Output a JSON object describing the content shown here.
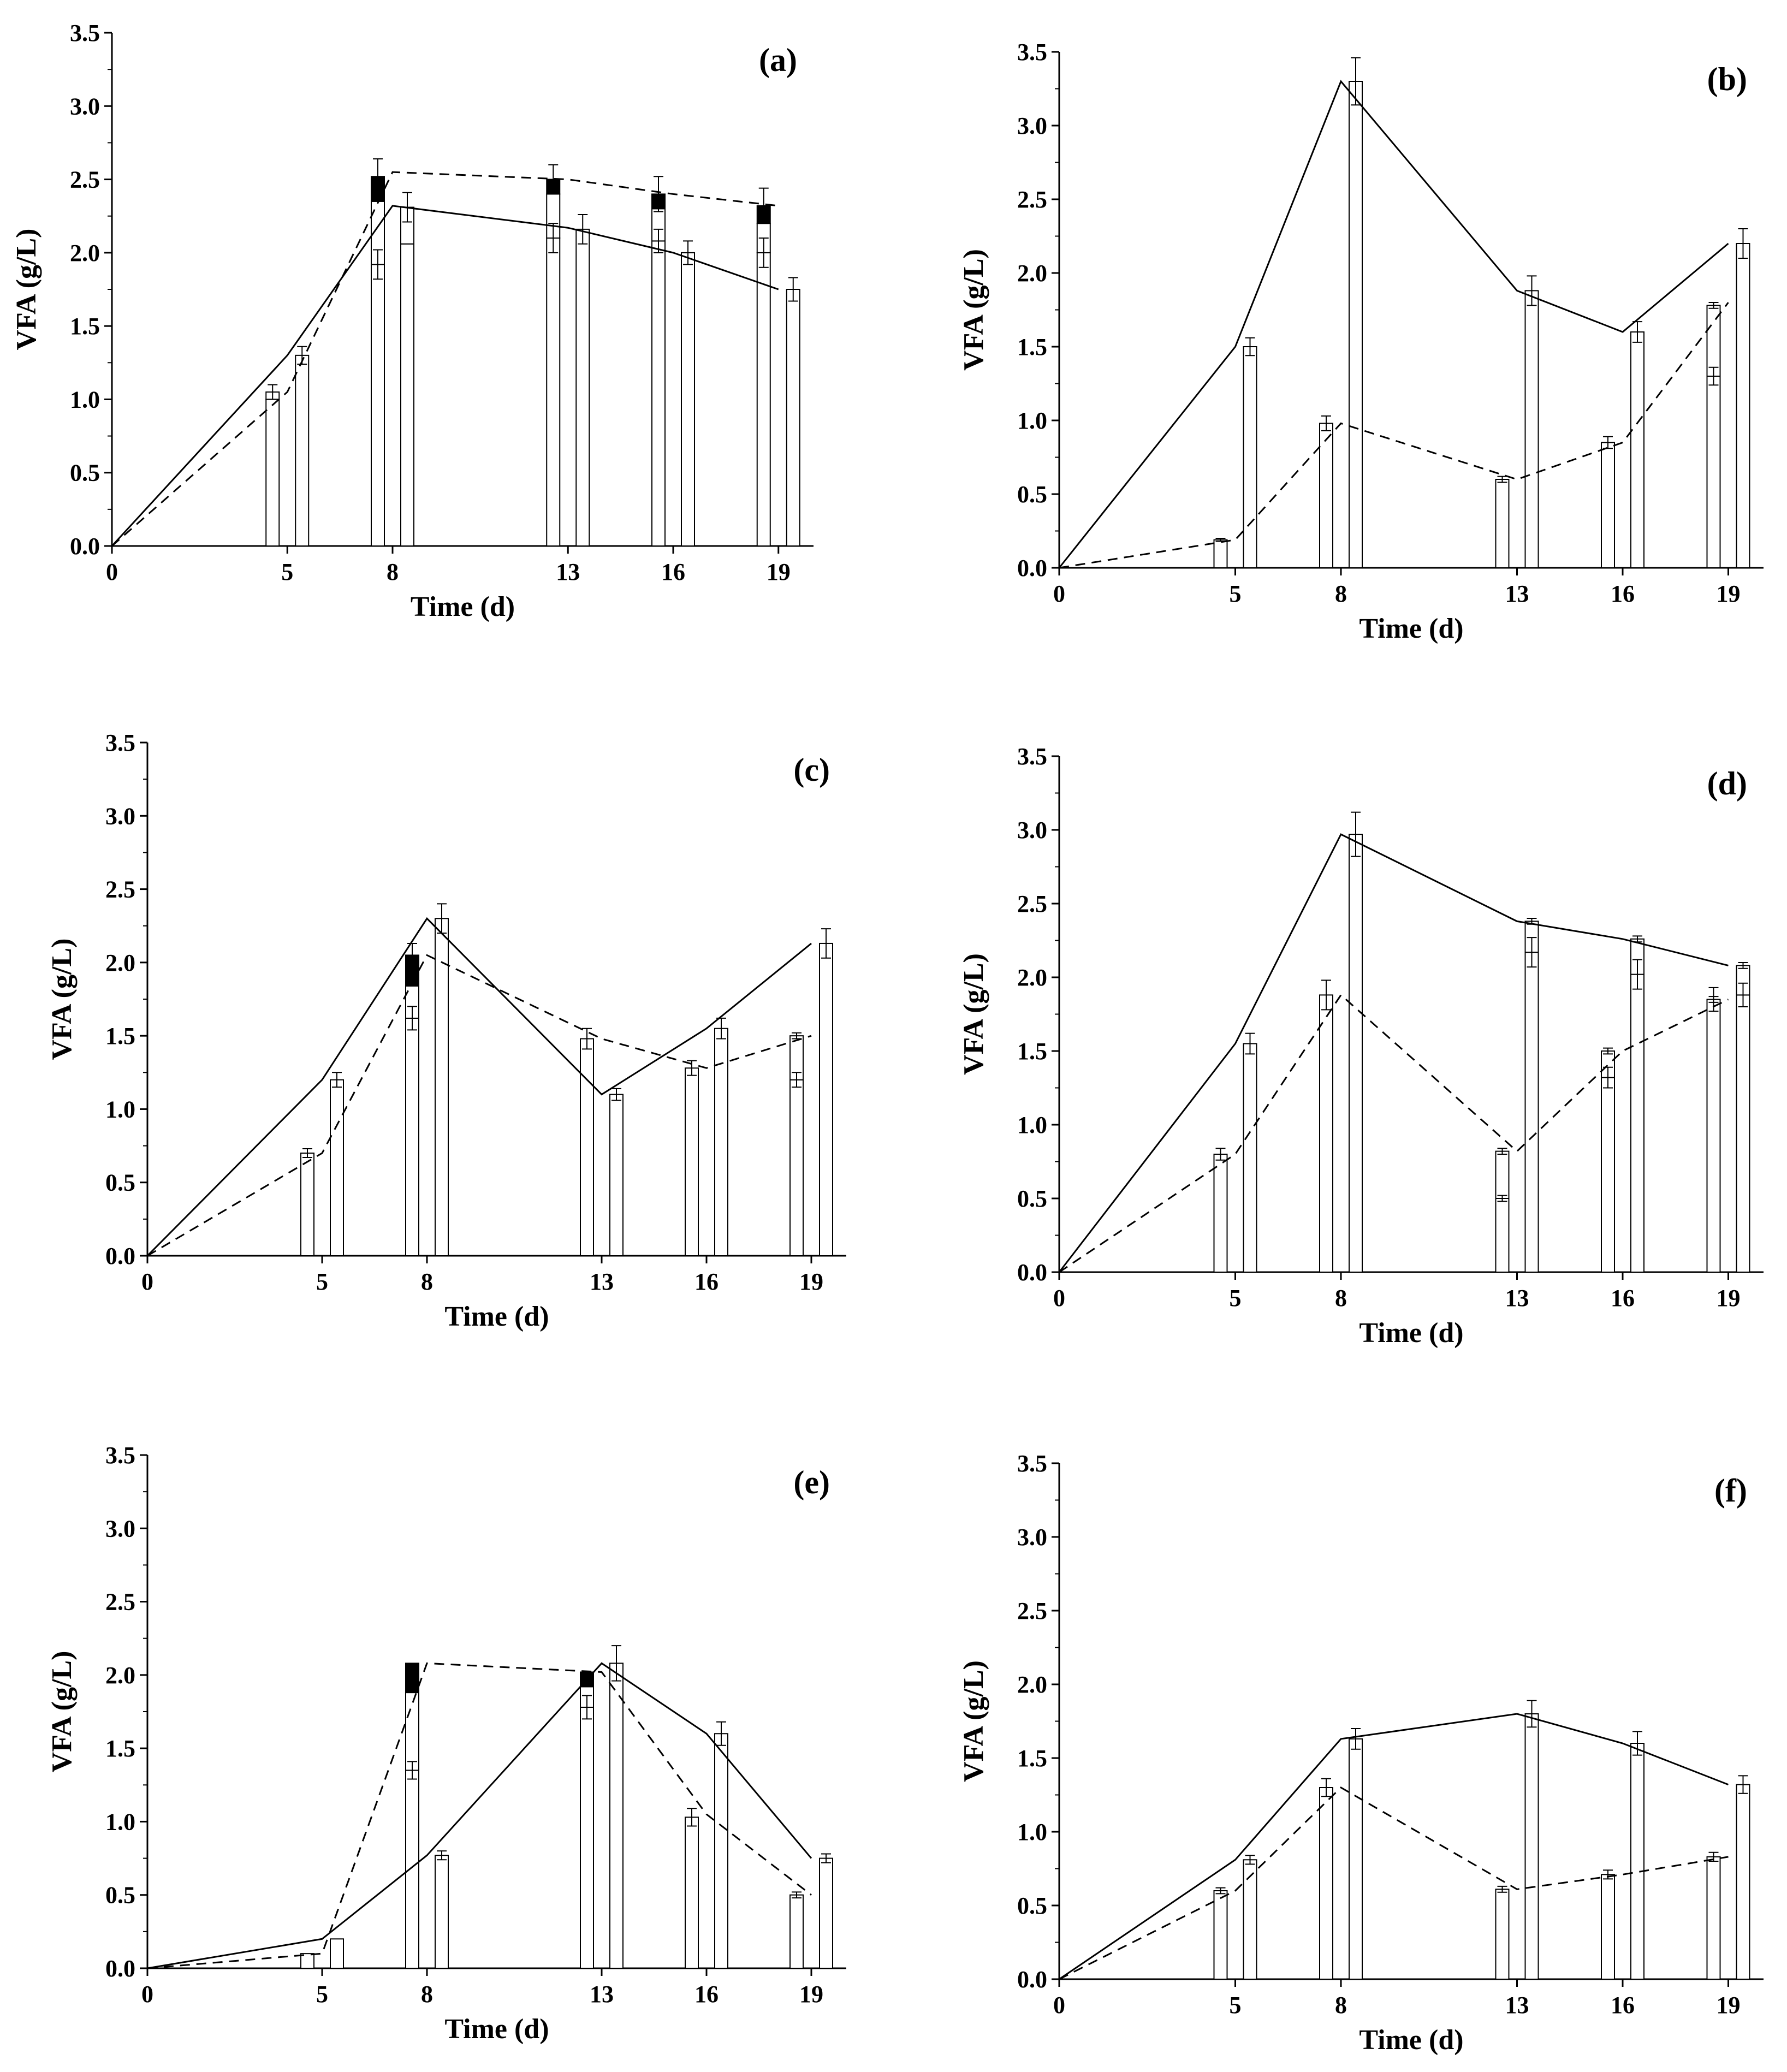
{
  "figure": {
    "panels": [
      {
        "label": "(a)",
        "ylabel": "VFA (g/L)",
        "xlabel": "Time (d)"
      },
      {
        "label": "(b)",
        "ylabel": "VFA (g/L)",
        "xlabel": "Time (d)"
      },
      {
        "label": "(c)",
        "ylabel": "VFA (g/L)",
        "xlabel": "Time (d)"
      },
      {
        "label": "(d)",
        "ylabel": "VFA (g/L)",
        "xlabel": "Time (d)"
      },
      {
        "label": "(e)",
        "ylabel": "VFA (g/L)",
        "xlabel": "Time (d)"
      },
      {
        "label": "(f)",
        "ylabel": "VFA (g/L)",
        "xlabel": "Time (d)"
      }
    ]
  },
  "chart_data": [
    {
      "type": "bar",
      "title": "(a)",
      "xlabel": "Time (d)",
      "ylabel": "VFA (g/L)",
      "x_ticks": [
        0,
        5,
        8,
        13,
        16,
        19
      ],
      "xlim": [
        0,
        20
      ],
      "ylim": [
        0,
        3.5
      ],
      "y_ticks": [
        "0.0",
        "0.5",
        "1.0",
        "1.5",
        "2.0",
        "2.5",
        "3.0",
        "3.5"
      ],
      "lines": {
        "dashed": [
          [
            0,
            0
          ],
          [
            5,
            1.05
          ],
          [
            8,
            2.55
          ],
          [
            13,
            2.5
          ],
          [
            16,
            2.4
          ],
          [
            19,
            2.32
          ]
        ],
        "solid": [
          [
            0,
            0
          ],
          [
            5,
            1.3
          ],
          [
            8,
            2.32
          ],
          [
            13,
            2.17
          ],
          [
            16,
            2.0
          ],
          [
            19,
            1.75
          ]
        ]
      },
      "bars": [
        {
          "day": 5,
          "left": {
            "stack": [
              1.0,
              0.05,
              0
            ],
            "err": 0.05,
            "inner_err": 0.0
          },
          "right": {
            "stack": [
              1.3
            ],
            "err": 0.06
          }
        },
        {
          "day": 8,
          "left": {
            "stack": [
              1.92,
              0.43,
              0.17
            ],
            "err": 0.12,
            "inner_err": 0.1
          },
          "right": {
            "stack": [
              2.06,
              0.25
            ],
            "err": 0.1
          }
        },
        {
          "day": 13,
          "left": {
            "stack": [
              2.1,
              0.3,
              0.1
            ],
            "err": 0.1,
            "inner_err": 0.1
          },
          "right": {
            "stack": [
              2.16
            ],
            "err": 0.1
          }
        },
        {
          "day": 16,
          "left": {
            "stack": [
              2.08,
              0.22,
              0.1
            ],
            "err": 0.12,
            "inner_err": 0.08
          },
          "right": {
            "stack": [
              2.0
            ],
            "err": 0.08
          }
        },
        {
          "day": 19,
          "left": {
            "stack": [
              2.0,
              0.2,
              0.12
            ],
            "err": 0.12,
            "inner_err": 0.1
          },
          "right": {
            "stack": [
              1.75
            ],
            "err": 0.08
          }
        }
      ]
    },
    {
      "type": "bar",
      "title": "(b)",
      "xlabel": "Time (d)",
      "ylabel": "VFA (g/L)",
      "x_ticks": [
        0,
        5,
        8,
        13,
        16,
        19
      ],
      "xlim": [
        0,
        20
      ],
      "ylim": [
        0,
        3.5
      ],
      "y_ticks": [
        "0.0",
        "0.5",
        "1.0",
        "1.5",
        "2.0",
        "2.5",
        "3.0",
        "3.5"
      ],
      "lines": {
        "dashed": [
          [
            0,
            0
          ],
          [
            5,
            0.19
          ],
          [
            8,
            0.98
          ],
          [
            13,
            0.6
          ],
          [
            16,
            0.85
          ],
          [
            19,
            1.8
          ]
        ],
        "solid": [
          [
            0,
            0
          ],
          [
            5,
            1.5
          ],
          [
            8,
            3.3
          ],
          [
            13,
            1.88
          ],
          [
            16,
            1.6
          ],
          [
            19,
            2.2
          ]
        ]
      },
      "bars": [
        {
          "day": 5,
          "left": {
            "stack": [
              0.19
            ],
            "err": 0.01
          },
          "right": {
            "stack": [
              1.5
            ],
            "err": 0.06
          }
        },
        {
          "day": 8,
          "left": {
            "stack": [
              0.98
            ],
            "err": 0.05
          },
          "right": {
            "stack": [
              3.3
            ],
            "err": 0.16
          }
        },
        {
          "day": 13,
          "left": {
            "stack": [
              0.6
            ],
            "err": 0.02
          },
          "right": {
            "stack": [
              1.88
            ],
            "err": 0.1
          }
        },
        {
          "day": 16,
          "left": {
            "stack": [
              0.85
            ],
            "err": 0.04
          },
          "right": {
            "stack": [
              1.6
            ],
            "err": 0.07
          }
        },
        {
          "day": 19,
          "left": {
            "stack": [
              1.3,
              0.48
            ],
            "err": 0.02,
            "inner_err": 0.06
          },
          "right": {
            "stack": [
              2.2
            ],
            "err": 0.1
          }
        }
      ]
    },
    {
      "type": "bar",
      "title": "(c)",
      "xlabel": "Time (d)",
      "ylabel": "VFA (g/L)",
      "x_ticks": [
        0,
        5,
        8,
        13,
        16,
        19
      ],
      "xlim": [
        0,
        20
      ],
      "ylim": [
        0,
        3.5
      ],
      "y_ticks": [
        "0.0",
        "0.5",
        "1.0",
        "1.5",
        "2.0",
        "2.5",
        "3.0",
        "3.5"
      ],
      "lines": {
        "dashed": [
          [
            0,
            0
          ],
          [
            5,
            0.7
          ],
          [
            8,
            2.05
          ],
          [
            13,
            1.48
          ],
          [
            16,
            1.28
          ],
          [
            19,
            1.5
          ]
        ],
        "solid": [
          [
            0,
            0
          ],
          [
            5,
            1.2
          ],
          [
            8,
            2.3
          ],
          [
            13,
            1.1
          ],
          [
            16,
            1.55
          ],
          [
            19,
            2.13
          ]
        ]
      },
      "bars": [
        {
          "day": 5,
          "left": {
            "stack": [
              0.7
            ],
            "err": 0.03
          },
          "right": {
            "stack": [
              1.2
            ],
            "err": 0.05
          }
        },
        {
          "day": 8,
          "left": {
            "stack": [
              1.62,
              0.22,
              0.21
            ],
            "err": 0.08,
            "inner_err": 0.08
          },
          "right": {
            "stack": [
              2.3
            ],
            "err": 0.1
          }
        },
        {
          "day": 13,
          "left": {
            "stack": [
              1.48
            ],
            "err": 0.07
          },
          "right": {
            "stack": [
              1.1
            ],
            "err": 0.04
          }
        },
        {
          "day": 16,
          "left": {
            "stack": [
              1.28
            ],
            "err": 0.05
          },
          "right": {
            "stack": [
              1.55
            ],
            "err": 0.07
          }
        },
        {
          "day": 19,
          "left": {
            "stack": [
              1.2,
              0.3
            ],
            "err": 0.02,
            "inner_err": 0.05
          },
          "right": {
            "stack": [
              2.13
            ],
            "err": 0.1
          }
        }
      ]
    },
    {
      "type": "bar",
      "title": "(d)",
      "xlabel": "Time (d)",
      "ylabel": "VFA (g/L)",
      "x_ticks": [
        0,
        5,
        8,
        13,
        16,
        19
      ],
      "xlim": [
        0,
        20
      ],
      "ylim": [
        0,
        3.5
      ],
      "y_ticks": [
        "0.0",
        "0.5",
        "1.0",
        "1.5",
        "2.0",
        "2.5",
        "3.0",
        "3.5"
      ],
      "lines": {
        "dashed": [
          [
            0,
            0
          ],
          [
            5,
            0.8
          ],
          [
            8,
            1.88
          ],
          [
            13,
            0.82
          ],
          [
            16,
            1.5
          ],
          [
            19,
            1.85
          ]
        ],
        "solid": [
          [
            0,
            0
          ],
          [
            5,
            1.55
          ],
          [
            8,
            2.97
          ],
          [
            13,
            2.38
          ],
          [
            16,
            2.26
          ],
          [
            19,
            2.08
          ]
        ]
      },
      "bars": [
        {
          "day": 5,
          "left": {
            "stack": [
              0.8
            ],
            "err": 0.04
          },
          "right": {
            "stack": [
              1.55
            ],
            "err": 0.07
          }
        },
        {
          "day": 8,
          "left": {
            "stack": [
              1.88
            ],
            "err": 0.1
          },
          "right": {
            "stack": [
              2.97
            ],
            "err": 0.15
          }
        },
        {
          "day": 13,
          "left": {
            "stack": [
              0.5,
              0.32
            ],
            "err": 0.02,
            "inner_err": 0.02
          },
          "right": {
            "stack": [
              2.17,
              0.21
            ],
            "err": 0.02,
            "inner_err": 0.1
          }
        },
        {
          "day": 16,
          "left": {
            "stack": [
              1.32,
              0.18
            ],
            "err": 0.02,
            "inner_err": 0.07
          },
          "right": {
            "stack": [
              2.02,
              0.24
            ],
            "err": 0.02,
            "inner_err": 0.1
          }
        },
        {
          "day": 19,
          "left": {
            "stack": [
              1.85
            ],
            "err": 0.02,
            "inner_err": 0.08
          },
          "right": {
            "stack": [
              1.88,
              0.2
            ],
            "err": 0.02,
            "inner_err": 0.08
          }
        }
      ]
    },
    {
      "type": "bar",
      "title": "(e)",
      "xlabel": "Time (d)",
      "ylabel": "VFA (g/L)",
      "x_ticks": [
        0,
        5,
        8,
        13,
        16,
        19
      ],
      "xlim": [
        0,
        20
      ],
      "ylim": [
        0,
        3.5
      ],
      "y_ticks": [
        "0.0",
        "0.5",
        "1.0",
        "1.5",
        "2.0",
        "2.5",
        "3.0",
        "3.5"
      ],
      "lines": {
        "dashed": [
          [
            0,
            0
          ],
          [
            5,
            0.1
          ],
          [
            8,
            2.08
          ],
          [
            13,
            2.02
          ],
          [
            16,
            1.05
          ],
          [
            19,
            0.5
          ]
        ],
        "solid": [
          [
            0,
            0
          ],
          [
            5,
            0.2
          ],
          [
            8,
            0.77
          ],
          [
            13,
            2.08
          ],
          [
            16,
            1.6
          ],
          [
            19,
            0.75
          ]
        ]
      },
      "bars": [
        {
          "day": 5,
          "left": {
            "stack": [
              0.1
            ],
            "err": 0.0
          },
          "right": {
            "stack": [
              0.2
            ],
            "err": 0.0
          }
        },
        {
          "day": 8,
          "left": {
            "stack": [
              1.35,
              0.53,
              0.2
            ],
            "err": 0.0,
            "inner_err": 0.06
          },
          "right": {
            "stack": [
              0.77
            ],
            "err": 0.03
          }
        },
        {
          "day": 13,
          "left": {
            "stack": [
              1.78,
              0.14,
              0.1
            ],
            "err": 0.0,
            "inner_err": 0.08
          },
          "right": {
            "stack": [
              2.08
            ],
            "err": 0.12
          }
        },
        {
          "day": 16,
          "left": {
            "stack": [
              1.03
            ],
            "err": 0.06
          },
          "right": {
            "stack": [
              1.6
            ],
            "err": 0.08
          }
        },
        {
          "day": 19,
          "left": {
            "stack": [
              0.5
            ],
            "err": 0.02
          },
          "right": {
            "stack": [
              0.75
            ],
            "err": 0.03
          }
        }
      ]
    },
    {
      "type": "bar",
      "title": "(f)",
      "xlabel": "Time (d)",
      "ylabel": "VFA (g/L)",
      "x_ticks": [
        0,
        5,
        8,
        13,
        16,
        19
      ],
      "xlim": [
        0,
        20
      ],
      "ylim": [
        0,
        3.5
      ],
      "y_ticks": [
        "0.0",
        "0.5",
        "1.0",
        "1.5",
        "2.0",
        "2.5",
        "3.0",
        "3.5"
      ],
      "lines": {
        "dashed": [
          [
            0,
            0
          ],
          [
            5,
            0.6
          ],
          [
            8,
            1.3
          ],
          [
            13,
            0.61
          ],
          [
            16,
            0.71
          ],
          [
            19,
            0.83
          ]
        ],
        "solid": [
          [
            0,
            0
          ],
          [
            5,
            0.81
          ],
          [
            8,
            1.63
          ],
          [
            13,
            1.8
          ],
          [
            16,
            1.6
          ],
          [
            19,
            1.32
          ]
        ]
      },
      "bars": [
        {
          "day": 5,
          "left": {
            "stack": [
              0.6
            ],
            "err": 0.02
          },
          "right": {
            "stack": [
              0.81
            ],
            "err": 0.03
          }
        },
        {
          "day": 8,
          "left": {
            "stack": [
              1.3
            ],
            "err": 0.06
          },
          "right": {
            "stack": [
              1.63
            ],
            "err": 0.07
          }
        },
        {
          "day": 13,
          "left": {
            "stack": [
              0.61
            ],
            "err": 0.02
          },
          "right": {
            "stack": [
              1.8
            ],
            "err": 0.09
          }
        },
        {
          "day": 16,
          "left": {
            "stack": [
              0.71
            ],
            "err": 0.03
          },
          "right": {
            "stack": [
              1.6
            ],
            "err": 0.08
          }
        },
        {
          "day": 19,
          "left": {
            "stack": [
              0.83
            ],
            "err": 0.03
          },
          "right": {
            "stack": [
              1.32
            ],
            "err": 0.06
          }
        }
      ]
    }
  ]
}
